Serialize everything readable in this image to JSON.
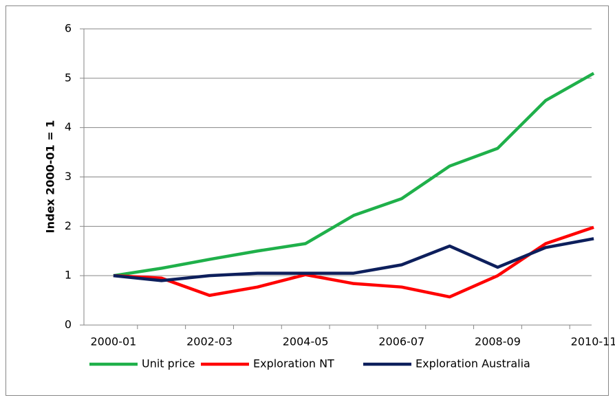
{
  "chart_data": {
    "type": "line",
    "y_label": "Index 2000-01 = 1",
    "categories": [
      "2000-01",
      null,
      "2002-03",
      null,
      "2004-05",
      null,
      "2006-07",
      null,
      "2008-09",
      null,
      "2010-11"
    ],
    "series": [
      {
        "name": "Unit price",
        "color": "#1fb04a",
        "values": [
          1.0,
          1.15,
          1.33,
          1.5,
          1.65,
          2.22,
          2.56,
          3.22,
          3.58,
          4.55,
          5.1
        ]
      },
      {
        "name": "Exploration NT",
        "color": "#ff0000",
        "values": [
          1.0,
          0.95,
          0.6,
          0.77,
          1.02,
          0.84,
          0.77,
          0.57,
          1.0,
          1.65,
          1.98
        ]
      },
      {
        "name": "Exploration Australia",
        "color": "#0d1f5c",
        "values": [
          1.0,
          0.9,
          1.0,
          1.05,
          1.05,
          1.05,
          1.22,
          1.6,
          1.17,
          1.57,
          1.75
        ]
      }
    ],
    "ylim": [
      0,
      6
    ],
    "yticks": [
      0,
      1,
      2,
      3,
      4,
      5,
      6
    ],
    "grid": true,
    "legend": "bottom"
  }
}
